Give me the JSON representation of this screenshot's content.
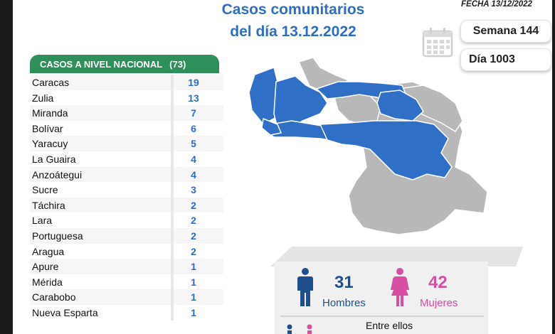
{
  "title_line1": "Casos comunitarios",
  "title_line2": "del día 13.12.2022",
  "date_label": "FECHA 13/12/2022",
  "week_label": "Semana 144",
  "day_label": "Día 1003",
  "table": {
    "title": "CASOS A NIVEL NACIONAL",
    "total": "(73)",
    "rows": [
      {
        "state": "Caracas",
        "count": "19"
      },
      {
        "state": "Zulia",
        "count": "13"
      },
      {
        "state": "Miranda",
        "count": "7"
      },
      {
        "state": "Bolívar",
        "count": "6"
      },
      {
        "state": "Yaracuy",
        "count": "5"
      },
      {
        "state": "La Guaira",
        "count": "4"
      },
      {
        "state": "Anzoátegui",
        "count": "4"
      },
      {
        "state": "Sucre",
        "count": "3"
      },
      {
        "state": "Táchira",
        "count": "2"
      },
      {
        "state": "Lara",
        "count": "2"
      },
      {
        "state": "Portuguesa",
        "count": "2"
      },
      {
        "state": "Aragua",
        "count": "2"
      },
      {
        "state": "Apure",
        "count": "1"
      },
      {
        "state": "Mérida",
        "count": "1"
      },
      {
        "state": "Carabobo",
        "count": "1"
      },
      {
        "state": "Nueva Esparta",
        "count": "1"
      }
    ]
  },
  "gender": {
    "men_count": "31",
    "men_label": "Hombres",
    "women_count": "42",
    "women_label": "Mujeres",
    "entre_label": "Entre ellos"
  },
  "colors": {
    "title_blue": "#2e6dc4",
    "header_green": "#2e8f5a",
    "map_blue": "#2f6fc6",
    "map_gray": "#b4b4b4",
    "men_color": "#1f4e8c",
    "women_color": "#d64fa3"
  },
  "icons": [
    "calendar-icon",
    "man-icon",
    "woman-icon"
  ]
}
